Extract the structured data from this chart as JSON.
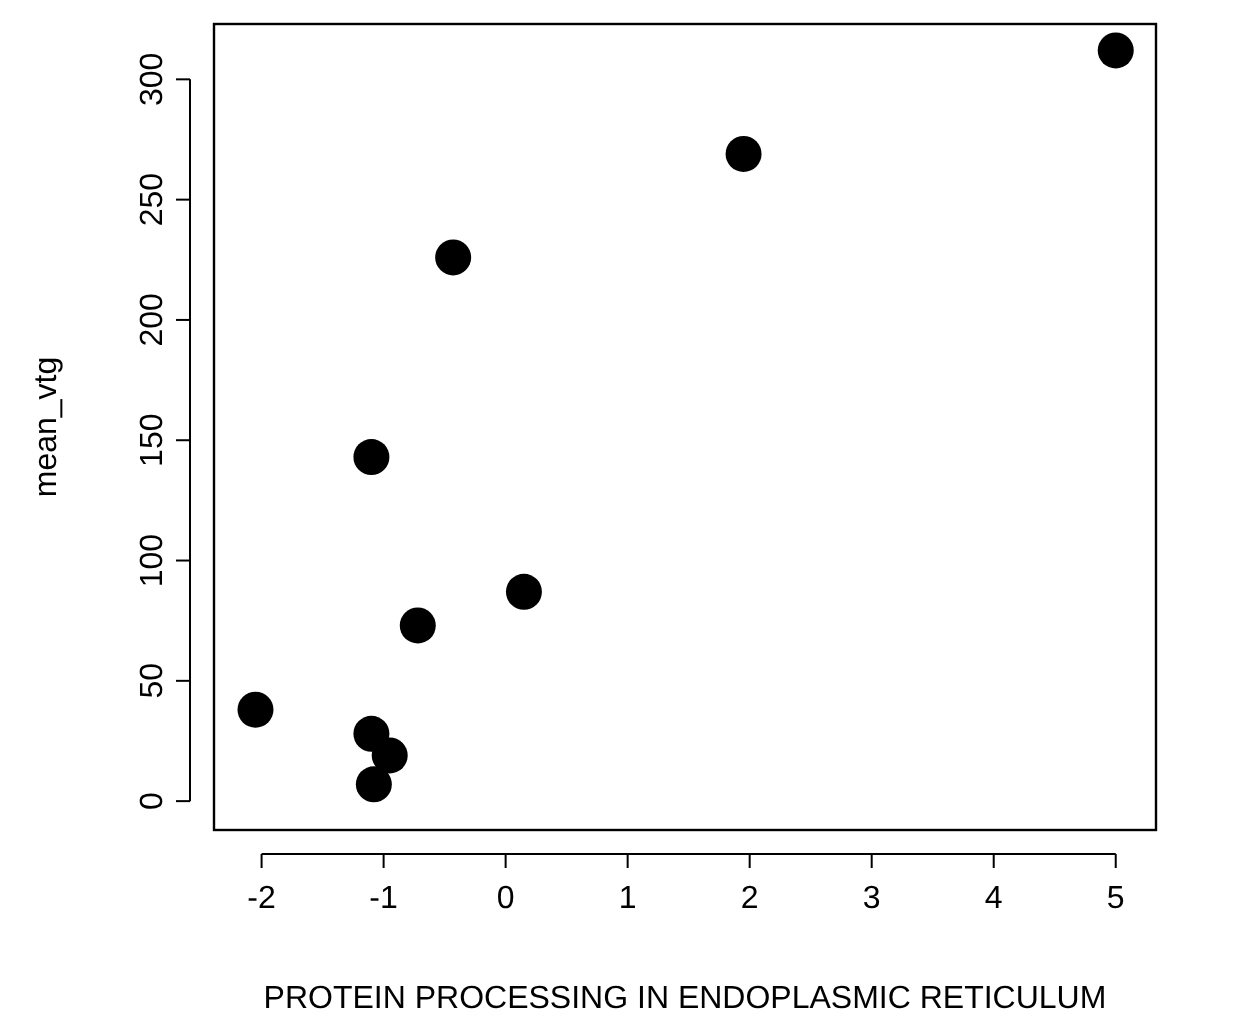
{
  "chart_data": {
    "type": "scatter",
    "xlabel": "PROTEIN PROCESSING IN ENDOPLASMIC RETICULUM",
    "ylabel": "mean_vtg",
    "x": [
      5,
      1.95,
      -0.43,
      -1.1,
      0.15,
      -0.72,
      -2.05,
      -1.1,
      -0.95,
      -1.08
    ],
    "values": [
      312,
      269,
      226,
      143,
      87,
      73,
      38,
      28,
      19,
      7
    ],
    "color": "#000000",
    "marker": "circle",
    "grid": false,
    "xlim": [
      -2.39,
      5.33
    ],
    "ylim": [
      -12,
      323
    ],
    "xticks": [
      -2,
      -1,
      0,
      1,
      2,
      3,
      4,
      5
    ],
    "yticks": [
      0,
      50,
      100,
      150,
      200,
      250,
      300
    ]
  }
}
